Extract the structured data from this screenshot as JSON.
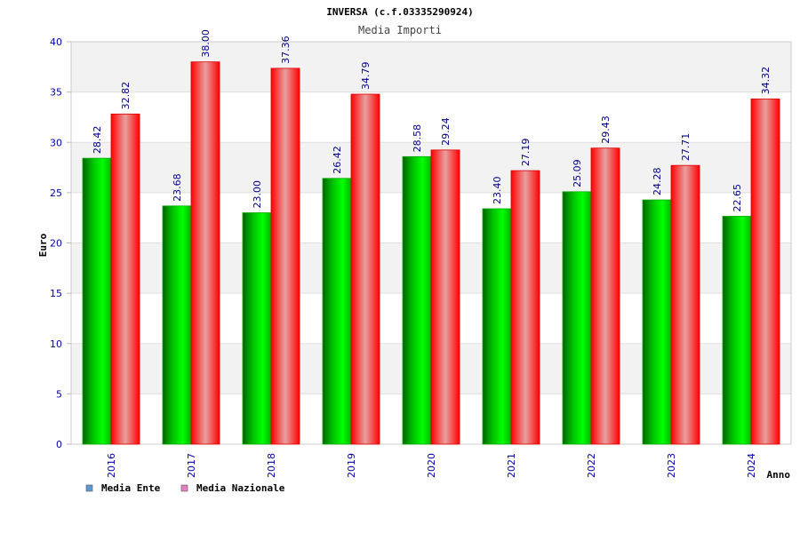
{
  "chart_data": {
    "type": "bar",
    "title": "INVERSA (c.f.03335290924)",
    "subtitle": "Media Importi",
    "xlabel": "Anno",
    "ylabel": "Euro",
    "ylim": [
      0,
      40
    ],
    "yticks": [
      "0",
      "5",
      "10",
      "15",
      "20",
      "25",
      "30",
      "35",
      "40"
    ],
    "categories": [
      "2016",
      "2017",
      "2018",
      "2019",
      "2020",
      "2021",
      "2022",
      "2023",
      "2024"
    ],
    "series": [
      {
        "name": "Media Ente",
        "values": [
          28.42,
          23.68,
          23.0,
          26.42,
          28.58,
          23.4,
          25.09,
          24.28,
          22.65
        ],
        "labels": [
          "28.42",
          "23.68",
          "23.00",
          "26.42",
          "28.58",
          "23.40",
          "25.09",
          "24.28",
          "22.65"
        ],
        "color": "#00b000",
        "legend_color": "#5b9bd5"
      },
      {
        "name": "Media Nazionale",
        "values": [
          32.82,
          38.0,
          37.36,
          34.79,
          29.24,
          27.19,
          29.43,
          27.71,
          34.32
        ],
        "labels": [
          "32.82",
          "38.00",
          "37.36",
          "34.79",
          "29.24",
          "27.19",
          "29.43",
          "27.71",
          "34.32"
        ],
        "color": "#ff1a1a",
        "legend_color": "#e47fbf"
      }
    ],
    "grid": true,
    "legend_placement": "bottom-left"
  }
}
